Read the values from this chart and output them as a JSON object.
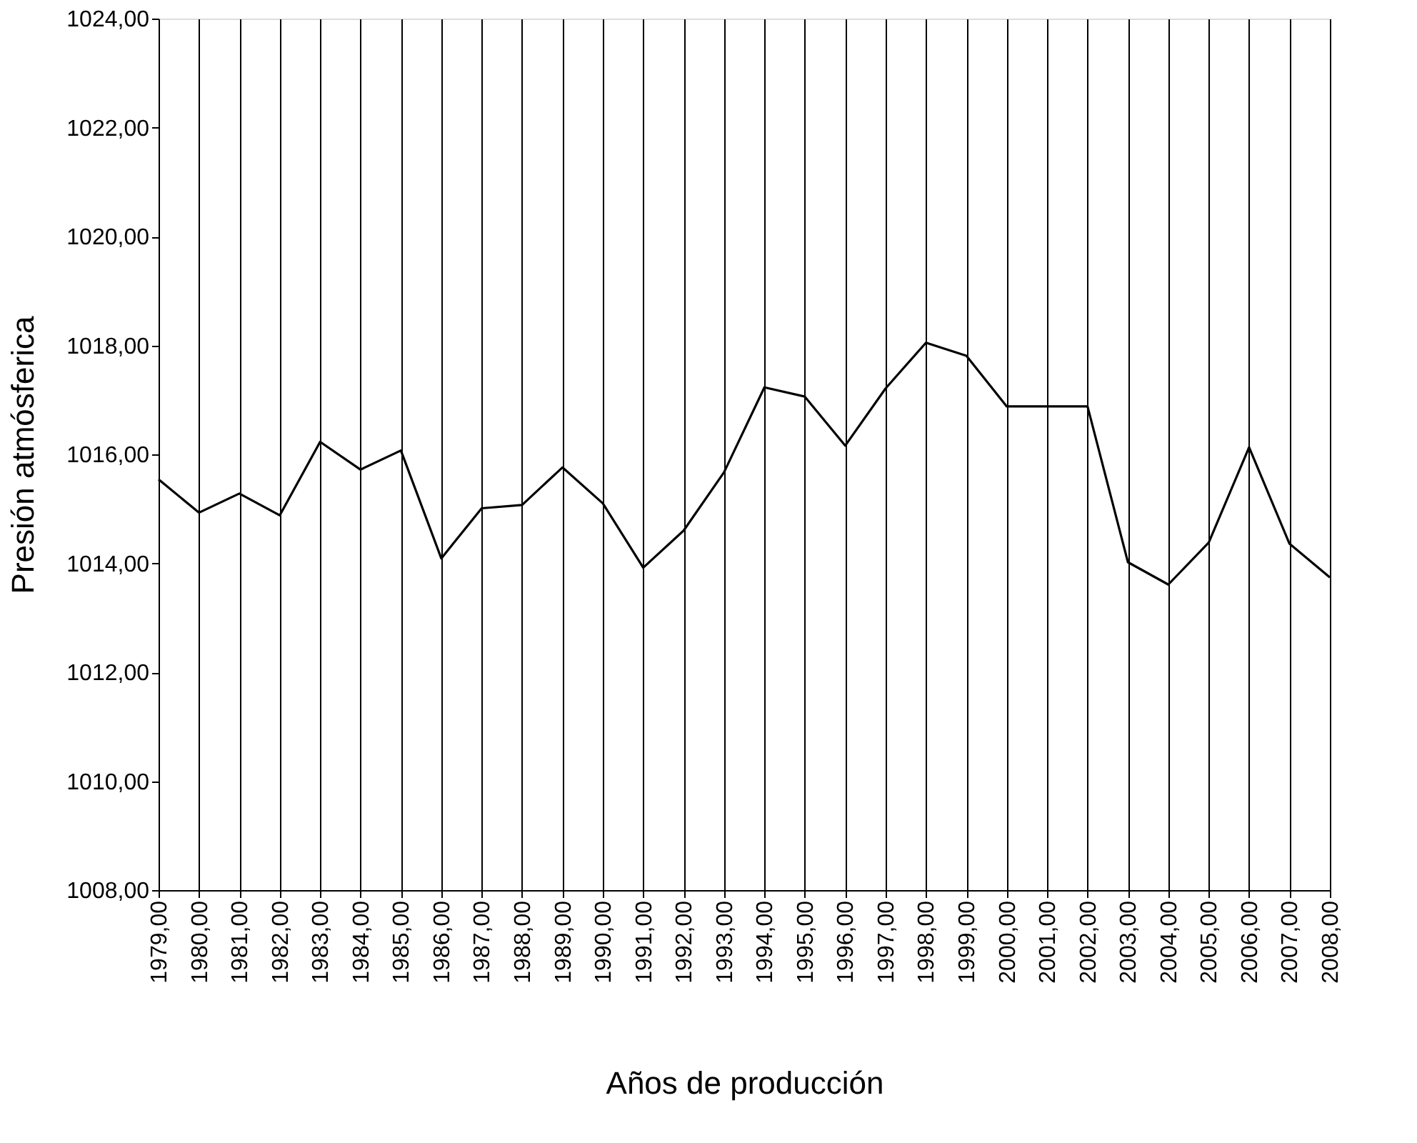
{
  "chart_data": {
    "type": "line",
    "xlabel": "Años de producción",
    "ylabel": "Presión atmósferica",
    "x": [
      1979,
      1980,
      1981,
      1982,
      1983,
      1984,
      1985,
      1986,
      1987,
      1988,
      1989,
      1990,
      1991,
      1992,
      1993,
      1994,
      1995,
      1996,
      1997,
      1998,
      1999,
      2000,
      2001,
      2002,
      2003,
      2004,
      2005,
      2006,
      2007,
      2008
    ],
    "series": [
      {
        "color": "#000000",
        "values": [
          1015.54,
          1014.93,
          1015.28,
          1014.88,
          1016.23,
          1015.72,
          1016.07,
          1014.09,
          1015.01,
          1015.07,
          1015.76,
          1015.1,
          1013.92,
          1014.6,
          1015.67,
          1017.23,
          1017.06,
          1016.16,
          1017.21,
          1018.05,
          1017.81,
          1016.88,
          1016.88,
          1016.88,
          1014.02,
          1013.61,
          1014.38,
          1016.13,
          1014.36,
          1013.74
        ]
      }
    ],
    "xlim": [
      1979,
      2008
    ],
    "xticks": [
      {
        "value": 1979,
        "label": "1979,00"
      },
      {
        "value": 1980,
        "label": "1980,00"
      },
      {
        "value": 1981,
        "label": "1981,00"
      },
      {
        "value": 1982,
        "label": "1982,00"
      },
      {
        "value": 1983,
        "label": "1983,00"
      },
      {
        "value": 1984,
        "label": "1984,00"
      },
      {
        "value": 1985,
        "label": "1985,00"
      },
      {
        "value": 1986,
        "label": "1986,00"
      },
      {
        "value": 1987,
        "label": "1987,00"
      },
      {
        "value": 1988,
        "label": "1988,00"
      },
      {
        "value": 1989,
        "label": "1989,00"
      },
      {
        "value": 1990,
        "label": "1990,00"
      },
      {
        "value": 1991,
        "label": "1991,00"
      },
      {
        "value": 1992,
        "label": "1992,00"
      },
      {
        "value": 1993,
        "label": "1993,00"
      },
      {
        "value": 1994,
        "label": "1994,00"
      },
      {
        "value": 1995,
        "label": "1995,00"
      },
      {
        "value": 1996,
        "label": "1996,00"
      },
      {
        "value": 1997,
        "label": "1997,00"
      },
      {
        "value": 1998,
        "label": "1998,00"
      },
      {
        "value": 1999,
        "label": "1999,00"
      },
      {
        "value": 2000,
        "label": "2000,00"
      },
      {
        "value": 2001,
        "label": "2001,00"
      },
      {
        "value": 2002,
        "label": "2002,00"
      },
      {
        "value": 2003,
        "label": "2003,00"
      },
      {
        "value": 2004,
        "label": "2004,00"
      },
      {
        "value": 2005,
        "label": "2005,00"
      },
      {
        "value": 2006,
        "label": "2006,00"
      },
      {
        "value": 2007,
        "label": "2007,00"
      },
      {
        "value": 2008,
        "label": "2008,00"
      }
    ],
    "ylim": [
      1008,
      1024
    ],
    "yticks": [
      {
        "value": 1008,
        "label": "1008,00"
      },
      {
        "value": 1010,
        "label": "1010,00"
      },
      {
        "value": 1012,
        "label": "1012,00"
      },
      {
        "value": 1014,
        "label": "1014,00"
      },
      {
        "value": 1016,
        "label": "1016,00"
      },
      {
        "value": 1018,
        "label": "1018,00"
      },
      {
        "value": 1020,
        "label": "1020,00"
      },
      {
        "value": 1022,
        "label": "1022,00"
      },
      {
        "value": 1024,
        "label": "1024,00"
      }
    ],
    "grid": "x",
    "marker": "none",
    "line_style": "solid"
  }
}
